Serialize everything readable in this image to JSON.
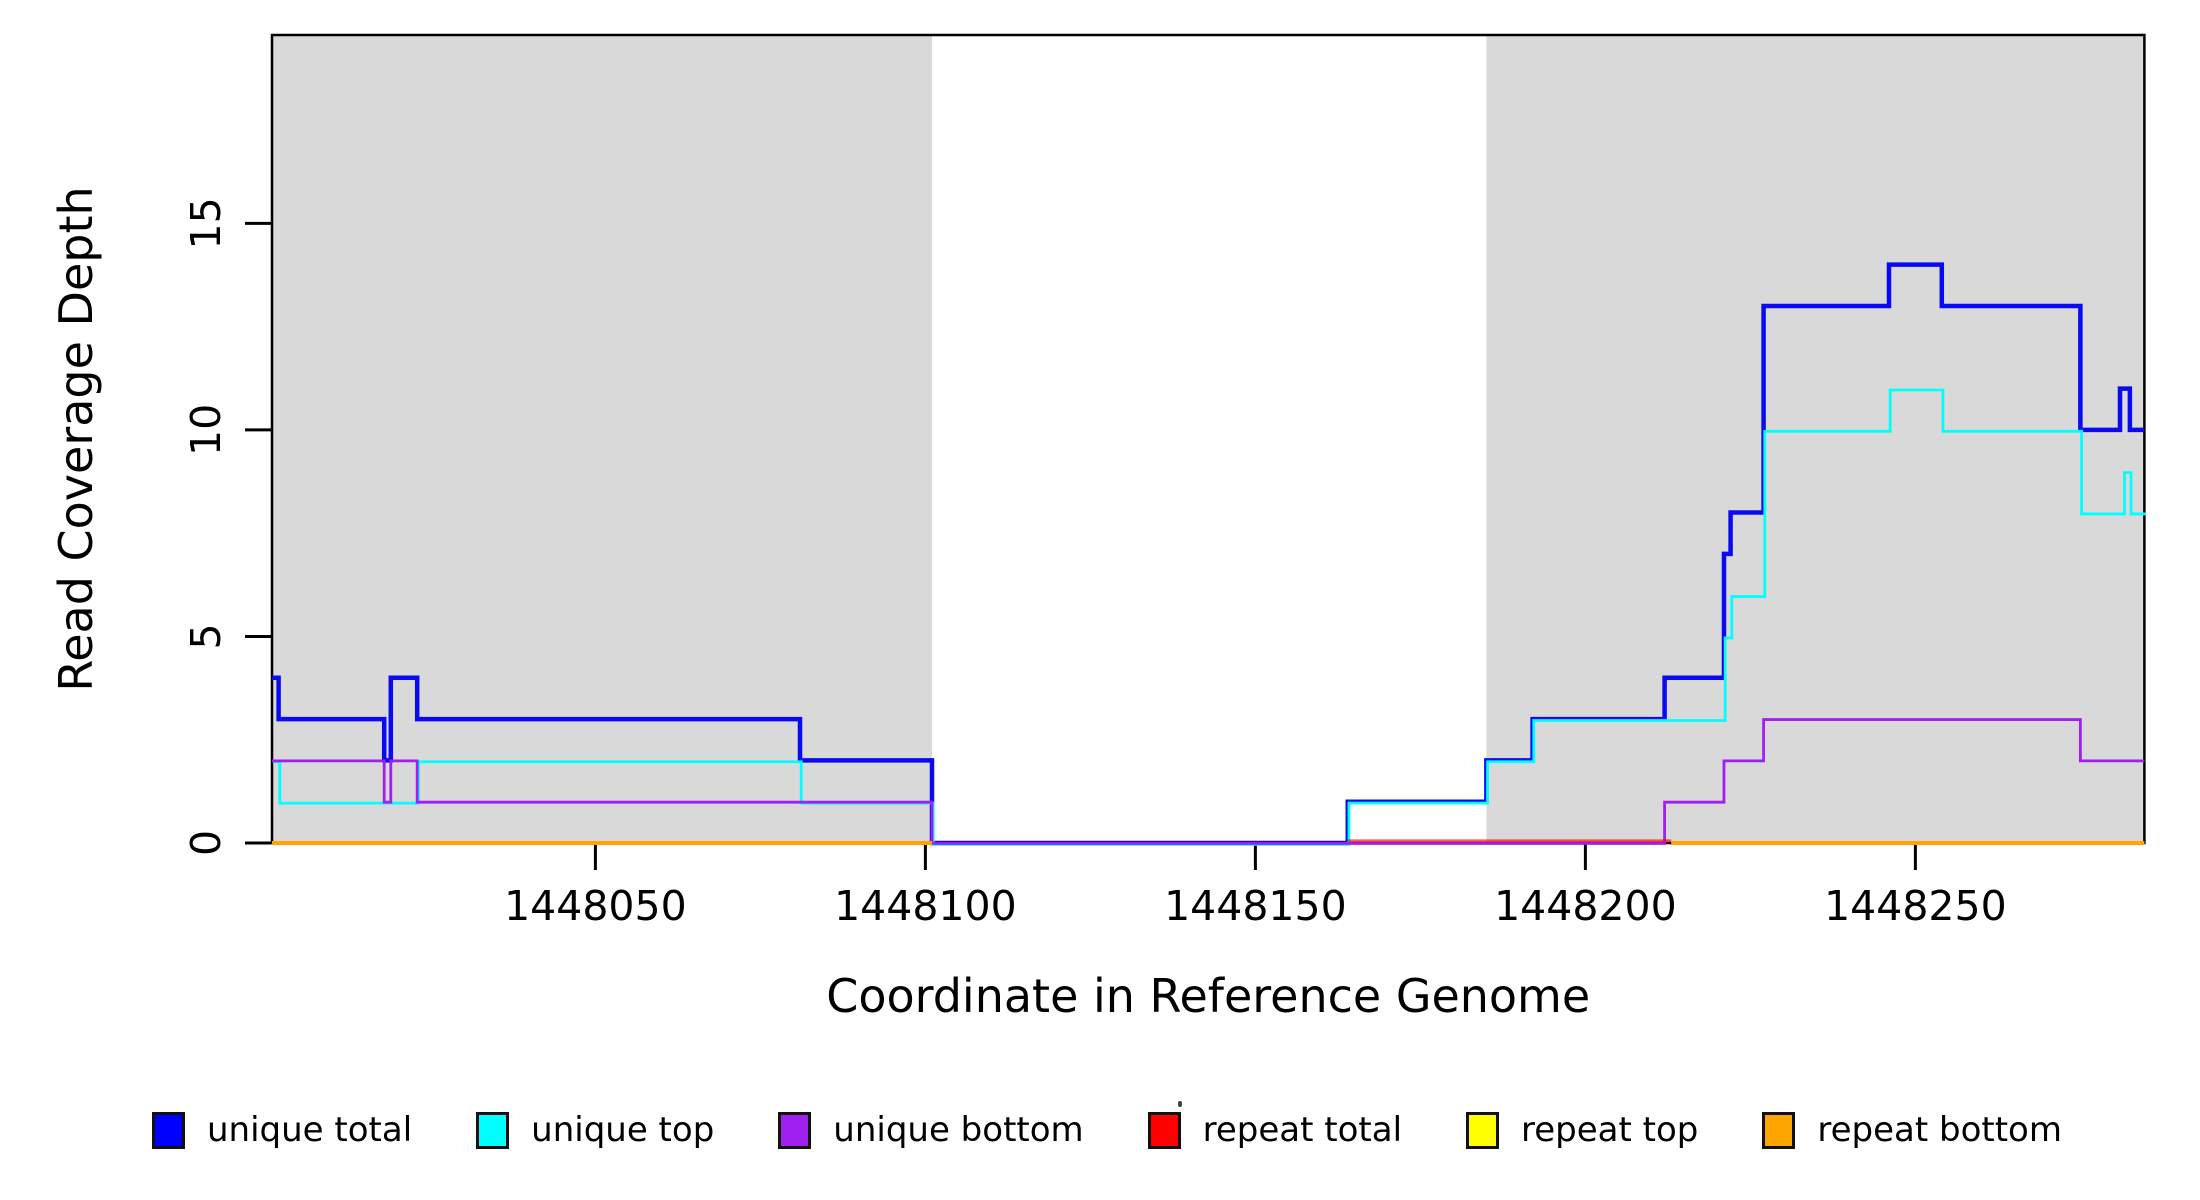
{
  "chart_data": {
    "type": "line",
    "subtype": "step-coverage-plot",
    "title": "",
    "xlabel": "Coordinate in Reference Genome",
    "ylabel": "Read Coverage Depth",
    "xlim": [
      1448001,
      1448284.7
    ],
    "ylim": [
      0,
      19.56
    ],
    "grid": false,
    "background": "#ffffff",
    "box_color": "#000000",
    "shade_color": "#d9d9d9",
    "x_ticks": [
      {
        "value": 1448050,
        "label": "1448050"
      },
      {
        "value": 1448100,
        "label": "1448100"
      },
      {
        "value": 1448150,
        "label": "1448150"
      },
      {
        "value": 1448200,
        "label": "1448200"
      },
      {
        "value": 1448250,
        "label": "1448250"
      }
    ],
    "y_ticks": [
      {
        "value": 0,
        "label": "0"
      },
      {
        "value": 5,
        "label": "5"
      },
      {
        "value": 10,
        "label": "10"
      },
      {
        "value": 15,
        "label": "15"
      }
    ],
    "shaded_regions": [
      {
        "name": "repeat-region-left",
        "x0": 1448001,
        "x1": 1448101
      },
      {
        "name": "repeat-region-right",
        "x0": 1448185,
        "x1": 1448284.7
      }
    ],
    "series": [
      {
        "name": "unique-total",
        "color": "#0a0af2",
        "width": 4.5,
        "dx": 0,
        "dy": 0,
        "points": [
          [
            1448001,
            4
          ],
          [
            1448002,
            3
          ],
          [
            1448018,
            2
          ],
          [
            1448019,
            4
          ],
          [
            1448023,
            3
          ],
          [
            1448081,
            2
          ],
          [
            1448101,
            0
          ],
          [
            1448164,
            1
          ],
          [
            1448185,
            2
          ],
          [
            1448192,
            3
          ],
          [
            1448212,
            4
          ],
          [
            1448221,
            7
          ],
          [
            1448222,
            8
          ],
          [
            1448227,
            13
          ],
          [
            1448246,
            14
          ],
          [
            1448254,
            13
          ],
          [
            1448275,
            10
          ],
          [
            1448281,
            11
          ],
          [
            1448282.5,
            10
          ]
        ],
        "end_x": 1448284.7
      },
      {
        "name": "unique-top",
        "color": "#00ffff",
        "width": 2.8,
        "dx": 1.2,
        "dy": 1.4,
        "points": [
          [
            1448001,
            2
          ],
          [
            1448002,
            1
          ],
          [
            1448023,
            2
          ],
          [
            1448081,
            1
          ],
          [
            1448101,
            0
          ],
          [
            1448164,
            1
          ],
          [
            1448185,
            2
          ],
          [
            1448192,
            3
          ],
          [
            1448221,
            5
          ],
          [
            1448222,
            6
          ],
          [
            1448227,
            10
          ],
          [
            1448246,
            11
          ],
          [
            1448254,
            10
          ],
          [
            1448275,
            8
          ],
          [
            1448281.5,
            9
          ],
          [
            1448282.5,
            8
          ]
        ],
        "end_x": 1448284.7
      },
      {
        "name": "unique-bottom",
        "color": "#a020f0",
        "width": 2.8,
        "dx": 0,
        "dy": 0.5,
        "points": [
          [
            1448001,
            2
          ],
          [
            1448018,
            1
          ],
          [
            1448019,
            2
          ],
          [
            1448023,
            1
          ],
          [
            1448101,
            0
          ],
          [
            1448212,
            1
          ],
          [
            1448221,
            2
          ],
          [
            1448227,
            3
          ],
          [
            1448275,
            2
          ]
        ],
        "end_x": 1448284.7
      },
      {
        "name": "repeat-total-zero-segment",
        "color": "rgba(255,0,0,0.65)",
        "width": 2.8,
        "dx": 0,
        "dy": -2.2,
        "points": [
          [
            1448164,
            0
          ]
        ],
        "end_x": 1448213
      },
      {
        "name": "repeat-bottom-left-segment",
        "color": "#ffa500",
        "width": 4,
        "dx": 0,
        "dy": 0,
        "points": [
          [
            1448001,
            0
          ]
        ],
        "end_x": 1448101
      },
      {
        "name": "repeat-bottom-right-segment",
        "color": "#ffa500",
        "width": 4,
        "dx": 0,
        "dy": 0,
        "points": [
          [
            1448213,
            0
          ]
        ],
        "end_x": 1448284.7
      }
    ],
    "legend": [
      {
        "label": "unique total",
        "color": "#0000ff"
      },
      {
        "label": "unique top",
        "color": "#00ffff"
      },
      {
        "label": "unique bottom",
        "color": "#a020f0"
      },
      {
        "label": "repeat total",
        "color": "#ff0000"
      },
      {
        "label": "repeat top",
        "color": "#ffff00"
      },
      {
        "label": "repeat bottom",
        "color": "#ffa500"
      }
    ],
    "legend_position": "bottom"
  }
}
